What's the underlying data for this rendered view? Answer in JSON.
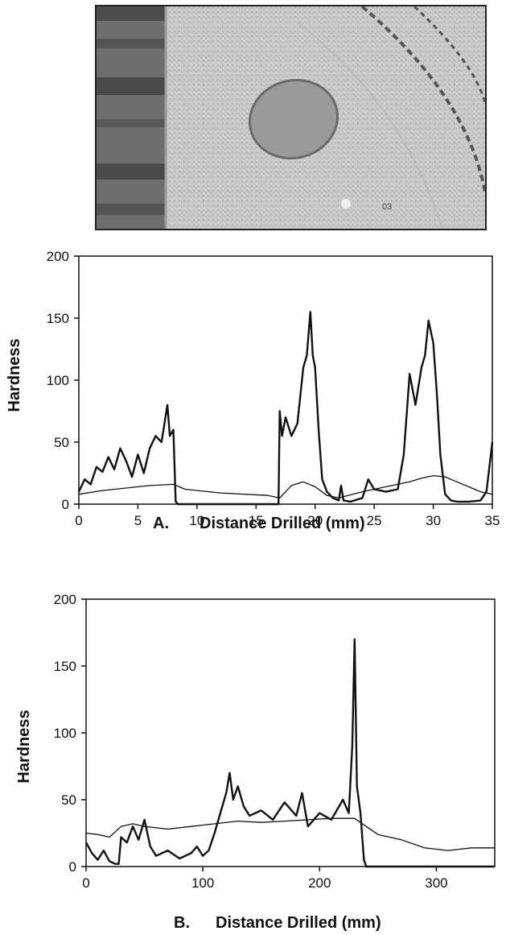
{
  "photo": {
    "label": "03"
  },
  "chart_data": [
    {
      "type": "line",
      "panel": "A.",
      "xlabel": "Distance Drilled (mm)",
      "ylabel": "Hardness",
      "xlim": [
        0,
        35
      ],
      "ylim": [
        0,
        200
      ],
      "xticks": [
        "0",
        "5",
        "10",
        "15",
        "20",
        "25",
        "30",
        "35"
      ],
      "yticks": [
        "0",
        "50",
        "100",
        "150",
        "200"
      ],
      "grid": false,
      "series": [
        {
          "color": "#111111",
          "stroke": "bold",
          "x": [
            0,
            0.5,
            1,
            1.5,
            2,
            2.5,
            3,
            3.5,
            4,
            4.5,
            5,
            5.5,
            6,
            6.5,
            7,
            7.5,
            7.7,
            8,
            8.2,
            8.4,
            9,
            10,
            12,
            14,
            16,
            16.9,
            17,
            17.2,
            17.5,
            18,
            18.5,
            19,
            19.3,
            19.6,
            19.8,
            20,
            20.3,
            20.6,
            21,
            21.5,
            22,
            22.2,
            22.4,
            23,
            24,
            24.5,
            25,
            26,
            27,
            27.5,
            28,
            28.5,
            29,
            29.3,
            29.6,
            30,
            30.3,
            30.6,
            31,
            31.5,
            32,
            33,
            34,
            34.5,
            35
          ],
          "y": [
            10,
            20,
            16,
            30,
            26,
            38,
            28,
            45,
            35,
            22,
            40,
            25,
            45,
            55,
            50,
            80,
            55,
            60,
            2,
            0,
            0,
            0,
            0,
            0,
            0,
            0,
            75,
            55,
            70,
            55,
            65,
            110,
            120,
            155,
            120,
            110,
            60,
            20,
            10,
            5,
            3,
            15,
            3,
            2,
            5,
            20,
            12,
            10,
            12,
            40,
            105,
            80,
            110,
            120,
            148,
            130,
            90,
            40,
            8,
            3,
            2,
            2,
            3,
            10,
            50
          ]
        },
        {
          "color": "#111111",
          "stroke": "thin",
          "x": [
            0,
            2,
            4,
            6,
            8,
            9,
            12,
            16,
            17,
            18,
            19,
            20,
            21,
            22,
            24,
            26,
            28,
            29,
            30,
            31,
            32,
            33,
            34,
            35
          ],
          "y": [
            8,
            11,
            13,
            15,
            16,
            12,
            9,
            7,
            5,
            15,
            18,
            14,
            7,
            5,
            10,
            14,
            18,
            21,
            23,
            22,
            18,
            14,
            10,
            8
          ]
        }
      ]
    },
    {
      "type": "line",
      "panel": "B.",
      "xlabel": "Distance Drilled (mm)",
      "ylabel": "Hardness",
      "xlim": [
        0,
        350
      ],
      "ylim": [
        0,
        200
      ],
      "xticks": [
        "0",
        "100",
        "200",
        "300"
      ],
      "yticks": [
        "0",
        "50",
        "100",
        "150",
        "200"
      ],
      "grid": false,
      "series": [
        {
          "color": "#111111",
          "stroke": "bold",
          "x": [
            0,
            5,
            10,
            15,
            20,
            25,
            28,
            30,
            35,
            40,
            45,
            50,
            55,
            60,
            70,
            80,
            90,
            95,
            100,
            105,
            110,
            115,
            120,
            123,
            126,
            130,
            135,
            140,
            150,
            160,
            170,
            180,
            185,
            190,
            200,
            210,
            220,
            225,
            228,
            230,
            232,
            235,
            238,
            240,
            260,
            300,
            350
          ],
          "y": [
            18,
            10,
            5,
            12,
            4,
            2,
            2,
            22,
            18,
            30,
            20,
            35,
            15,
            8,
            12,
            6,
            10,
            15,
            8,
            12,
            25,
            40,
            55,
            70,
            50,
            60,
            45,
            38,
            42,
            35,
            48,
            38,
            55,
            30,
            40,
            35,
            50,
            40,
            90,
            170,
            60,
            40,
            5,
            0,
            0,
            0,
            0
          ]
        },
        {
          "color": "#111111",
          "stroke": "thin",
          "x": [
            0,
            10,
            20,
            30,
            40,
            50,
            70,
            90,
            110,
            130,
            150,
            170,
            190,
            210,
            230,
            240,
            250,
            270,
            290,
            310,
            330,
            350
          ],
          "y": [
            25,
            24,
            22,
            30,
            32,
            30,
            28,
            30,
            32,
            34,
            33,
            34,
            35,
            36,
            36,
            30,
            24,
            20,
            14,
            12,
            14,
            14
          ]
        }
      ]
    }
  ]
}
